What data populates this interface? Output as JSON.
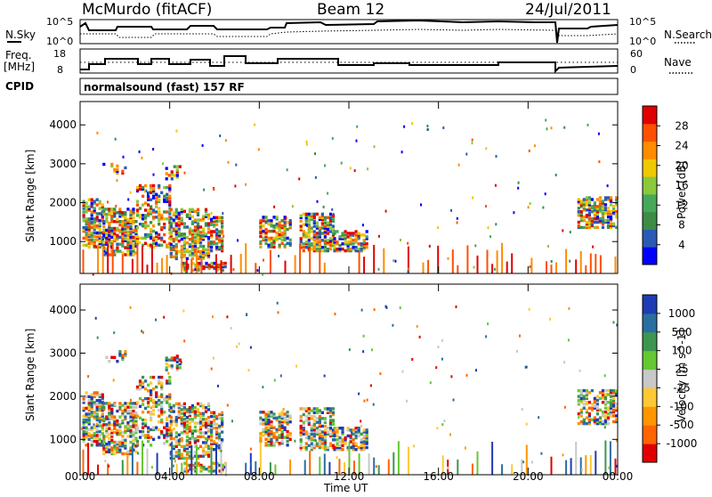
{
  "header": {
    "station": "McMurdo (fitACF)",
    "beam": "Beam 12",
    "date": "24/Jul/2011"
  },
  "strip1": {
    "left_label": "N.Sky",
    "right_label": "N.Search",
    "left_ticks": [
      "10^5",
      "10^0"
    ],
    "right_ticks": [
      "10^5",
      "10^0"
    ]
  },
  "strip2": {
    "left_label_1": "Freq.",
    "left_label_2": "[MHz]",
    "right_label": "Nave",
    "left_ticks": [
      "18",
      "8"
    ],
    "right_ticks": [
      "60",
      "0"
    ]
  },
  "cpid": {
    "label": "CPID",
    "value": "normalsound (fast) 157 RF"
  },
  "colors": {
    "power": [
      "#0000ff",
      "#2a5ab4",
      "#3c8c46",
      "#46a85a",
      "#8cc83c",
      "#f0c800",
      "#ff8c00",
      "#ff5000",
      "#e10000"
    ],
    "velocity": [
      "#e10000",
      "#ff6400",
      "#ff9600",
      "#ffc832",
      "#c8c8c8",
      "#64c832",
      "#3c9650",
      "#2a6ea0",
      "#1e3cb4"
    ]
  },
  "chart_data": [
    {
      "type": "heatmap",
      "title": "",
      "xlabel": "",
      "ylabel": "Slant Range [km]",
      "x_ticks": [
        "00:00",
        "04:00",
        "08:00",
        "12:00",
        "16:00",
        "20:00",
        "00:00"
      ],
      "y_ticks": [
        "1000",
        "2000",
        "3000",
        "4000"
      ],
      "xlim_hours": [
        0,
        24
      ],
      "ylim_km": [
        180,
        4600
      ],
      "colorbar": {
        "label": "Power [dB]",
        "ticks": [
          "4",
          "8",
          "12",
          "16",
          "20",
          "24",
          "28"
        ],
        "range": [
          0,
          30
        ]
      }
    },
    {
      "type": "heatmap",
      "title": "",
      "xlabel": "Time UT",
      "ylabel": "Slant Range [km]",
      "x_ticks": [
        "00:00",
        "04:00",
        "08:00",
        "12:00",
        "16:00",
        "20:00",
        "00:00"
      ],
      "y_ticks": [
        "1000",
        "2000",
        "3000",
        "4000"
      ],
      "xlim_hours": [
        0,
        24
      ],
      "ylim_km": [
        180,
        4600
      ],
      "colorbar": {
        "label": "Velocity [m s^-1]",
        "ticks": [
          "-1000",
          "-500",
          "-100",
          "-25",
          "25",
          "100",
          "500",
          "1000"
        ],
        "range": [
          -1500,
          1500
        ]
      }
    }
  ]
}
